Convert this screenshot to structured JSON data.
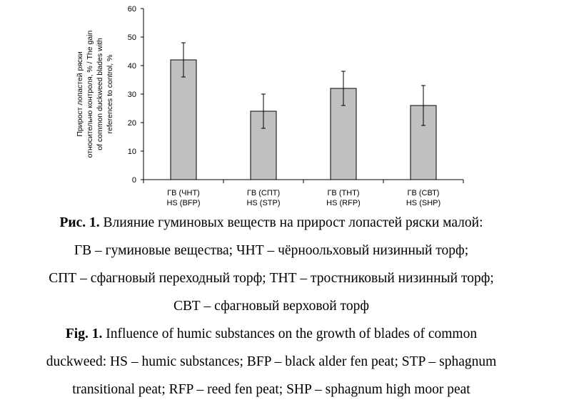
{
  "chart_data": {
    "type": "bar",
    "categories": [
      [
        "ГВ (ЧНТ)",
        "HS (BFP)"
      ],
      [
        "ГВ (СПТ)",
        "HS (STP)"
      ],
      [
        "ГВ (ТНТ)",
        "HS (RFP)"
      ],
      [
        "ГВ (СВТ)",
        "HS (SHP)"
      ]
    ],
    "values": [
      42,
      24,
      32,
      26
    ],
    "errors": [
      6,
      6,
      6,
      7
    ],
    "ylim": [
      0,
      60
    ],
    "yticks": [
      0,
      10,
      20,
      30,
      40,
      50,
      60
    ],
    "ytick_labels": [
      "0",
      "10",
      "20",
      "30",
      "40",
      "50",
      "60"
    ],
    "ylabel_lines": [
      "Прирост лопастей ряски",
      "относительно контроля, % / The gain",
      "of common duckweed blades with",
      "references to control, %"
    ],
    "xlabel": "",
    "title": "",
    "bar_color": "#c0c0c0",
    "grid": false
  },
  "caption": {
    "ru_bold": "Рис. 1.",
    "ru_line1": " Влияние гуминовых веществ на прирост лопастей ряски малой:",
    "ru_line2": "ГВ – гуминовые вещества; ЧНТ – чёрноольховый низинный торф;",
    "ru_line3": "СПТ – сфагновый переходный торф; ТНТ – тростниковый низинный торф;",
    "ru_line4": "СВТ – сфагновый верховой торф",
    "en_bold": "Fig. 1.",
    "en_line1": " Influence of humic substances on the growth of blades of common",
    "en_line2": "duckweed: HS – humic substances; BFP – black alder fen peat; STP – sphagnum",
    "en_line3": "transitional peat; RFP – reed fen peat; SHP – sphagnum high moor peat"
  }
}
